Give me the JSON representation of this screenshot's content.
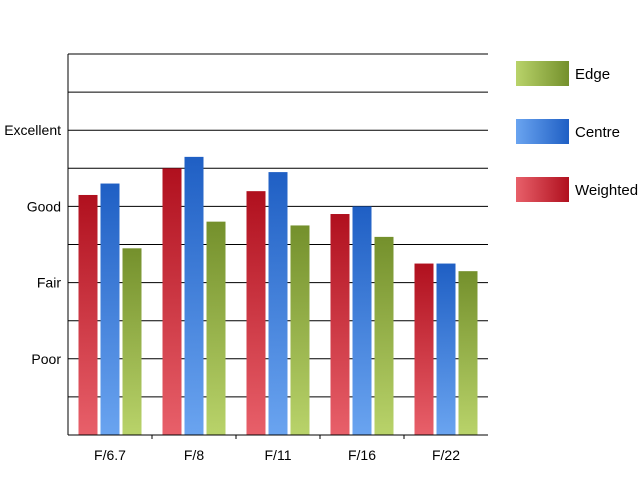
{
  "chart_data": {
    "type": "bar",
    "categories": [
      "F/6.7",
      "F/8",
      "F/11",
      "F/16",
      "F/22"
    ],
    "y_tick_labels": [
      {
        "label": "Poor",
        "value": 2
      },
      {
        "label": "Fair",
        "value": 4
      },
      {
        "label": "Good",
        "value": 6
      },
      {
        "label": "Excellent",
        "value": 8
      }
    ],
    "ylim": [
      0,
      10
    ],
    "grid": true,
    "legend_position": "right",
    "series": [
      {
        "name": "Weighted",
        "values": [
          6.3,
          7.0,
          6.4,
          5.8,
          4.5
        ],
        "color_light": "#e8606a",
        "color_dark": "#b0101e"
      },
      {
        "name": "Centre",
        "values": [
          6.6,
          7.3,
          6.9,
          6.0,
          4.5
        ],
        "color_light": "#6aa4f0",
        "color_dark": "#1f5fc4"
      },
      {
        "name": "Edge",
        "values": [
          4.9,
          5.6,
          5.5,
          5.2,
          4.3
        ],
        "color_light": "#b9d36a",
        "color_dark": "#74902c"
      }
    ],
    "legend_order": [
      "Edge",
      "Centre",
      "Weighted"
    ]
  }
}
